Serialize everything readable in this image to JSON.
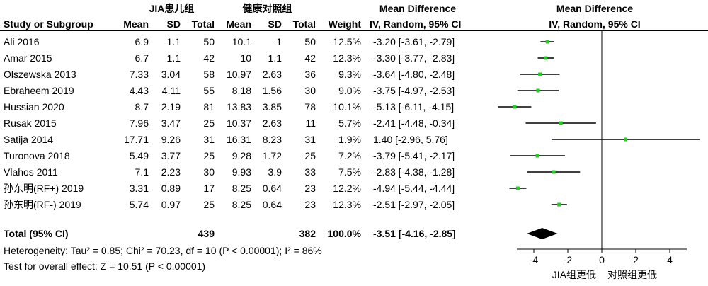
{
  "header": {
    "group1": "JIA患儿组",
    "group2": "健康对照组",
    "md_title": "Mean Difference",
    "md_sub": "IV, Random, 95% CI",
    "plot_title": "Mean Difference",
    "plot_sub": "IV, Random, 95% CI",
    "study_col": "Study or Subgroup",
    "mean1": "Mean",
    "sd1": "SD",
    "total1": "Total",
    "mean2": "Mean",
    "sd2": "SD",
    "total2": "Total",
    "weight": "Weight"
  },
  "studies": [
    {
      "name": "Ali 2016",
      "mean1": "6.9",
      "sd1": "1.1",
      "n1": "50",
      "mean2": "10.1",
      "sd2": "1",
      "n2": "50",
      "weight": "12.5%",
      "ci": "-3.20 [-3.61, -2.79]"
    },
    {
      "name": "Amar  2015",
      "mean1": "6.7",
      "sd1": "1.1",
      "n1": "42",
      "mean2": "10",
      "sd2": "1.1",
      "n2": "42",
      "weight": "12.3%",
      "ci": "-3.30 [-3.77, -2.83]"
    },
    {
      "name": "Olszewska 2013",
      "mean1": "7.33",
      "sd1": "3.04",
      "n1": "58",
      "mean2": "10.97",
      "sd2": "2.63",
      "n2": "36",
      "weight": "9.3%",
      "ci": "-3.64 [-4.80, -2.48]"
    },
    {
      "name": "Ebraheem 2019",
      "mean1": "4.43",
      "sd1": "4.11",
      "n1": "55",
      "mean2": "8.18",
      "sd2": "1.56",
      "n2": "30",
      "weight": "9.0%",
      "ci": "-3.75 [-4.97, -2.53]"
    },
    {
      "name": "Hussian  2020",
      "mean1": "8.7",
      "sd1": "2.19",
      "n1": "81",
      "mean2": "13.83",
      "sd2": "3.85",
      "n2": "78",
      "weight": "10.1%",
      "ci": "-5.13 [-6.11, -4.15]"
    },
    {
      "name": "Rusak  2015",
      "mean1": "7.96",
      "sd1": "3.47",
      "n1": "25",
      "mean2": "10.37",
      "sd2": "2.63",
      "n2": "11",
      "weight": "5.7%",
      "ci": "-2.41 [-4.48, -0.34]"
    },
    {
      "name": "Satija  2014",
      "mean1": "17.71",
      "sd1": "9.26",
      "n1": "31",
      "mean2": "16.31",
      "sd2": "8.23",
      "n2": "31",
      "weight": "1.9%",
      "ci": "1.40 [-2.96, 5.76]"
    },
    {
      "name": "Turonova  2018",
      "mean1": "5.49",
      "sd1": "3.77",
      "n1": "25",
      "mean2": "9.28",
      "sd2": "1.72",
      "n2": "25",
      "weight": "7.2%",
      "ci": "-3.79 [-5.41, -2.17]"
    },
    {
      "name": "Vlahos  2011",
      "mean1": "7.1",
      "sd1": "2.23",
      "n1": "30",
      "mean2": "9.93",
      "sd2": "3.9",
      "n2": "33",
      "weight": "7.5%",
      "ci": "-2.83 [-4.38, -1.28]"
    },
    {
      "name": "孙东明(RF+) 2019",
      "mean1": "3.31",
      "sd1": "0.89",
      "n1": "17",
      "mean2": "8.25",
      "sd2": "0.64",
      "n2": "23",
      "weight": "12.2%",
      "ci": "-4.94 [-5.44, -4.44]"
    },
    {
      "name": "孙东明(RF-) 2019",
      "mean1": "5.74",
      "sd1": "0.97",
      "n1": "25",
      "mean2": "8.25",
      "sd2": "0.64",
      "n2": "23",
      "weight": "12.3%",
      "ci": "-2.51 [-2.97, -2.05]"
    }
  ],
  "total": {
    "label": "Total (95% CI)",
    "n1": "439",
    "n2": "382",
    "weight": "100.0%",
    "ci": "-3.51 [-4.16, -2.85]"
  },
  "heterogeneity": "Heterogeneity: Tau² = 0.85; Chi² = 70.23, df = 10 (P < 0.00001); I² = 86%",
  "overall_effect": "Test for overall effect: Z = 10.51 (P < 0.00001)",
  "chart_data": {
    "type": "scatter",
    "subtype": "forest-plot",
    "title": "Mean Difference",
    "subtitle": "IV, Random, 95% CI",
    "xlim": [
      -5,
      5
    ],
    "xticks": [
      -4,
      -2,
      0,
      2,
      4
    ],
    "xlabel_left": "JIA组更低",
    "xlabel_right": "对照组更低",
    "marker_color": "#22cc22",
    "studies": [
      {
        "md": -3.2,
        "lo": -3.61,
        "hi": -2.79
      },
      {
        "md": -3.3,
        "lo": -3.77,
        "hi": -2.83
      },
      {
        "md": -3.64,
        "lo": -4.8,
        "hi": -2.48
      },
      {
        "md": -3.75,
        "lo": -4.97,
        "hi": -2.53
      },
      {
        "md": -5.13,
        "lo": -6.11,
        "hi": -4.15
      },
      {
        "md": -2.41,
        "lo": -4.48,
        "hi": -0.34
      },
      {
        "md": 1.4,
        "lo": -2.96,
        "hi": 5.76
      },
      {
        "md": -3.79,
        "lo": -5.41,
        "hi": -2.17
      },
      {
        "md": -2.83,
        "lo": -4.38,
        "hi": -1.28
      },
      {
        "md": -4.94,
        "lo": -5.44,
        "hi": -4.44
      },
      {
        "md": -2.51,
        "lo": -2.97,
        "hi": -2.05
      }
    ],
    "pooled": {
      "md": -3.51,
      "lo": -4.16,
      "hi": -2.85
    }
  }
}
